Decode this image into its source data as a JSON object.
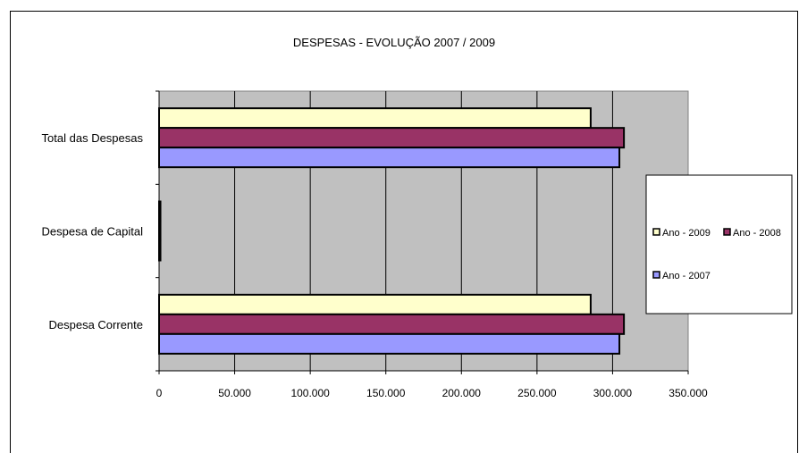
{
  "chart_data": {
    "type": "bar",
    "orientation": "horizontal",
    "title": "DESPESAS - EVOLUÇÃO  2007 / 2009",
    "categories": [
      "Despesa Corrente",
      "Despesa de Capital",
      "Total das Despesas"
    ],
    "series": [
      {
        "name": "Ano - 2007",
        "color": "#9999ff",
        "values": [
          304500,
          900,
          304500
        ]
      },
      {
        "name": "Ano - 2008",
        "color": "#993366",
        "values": [
          307500,
          900,
          307500
        ]
      },
      {
        "name": "Ano - 2009",
        "color": "#ffffcc",
        "values": [
          285500,
          900,
          285500
        ]
      }
    ],
    "xlim": [
      0,
      350000
    ],
    "xticks": [
      0,
      50000,
      100000,
      150000,
      200000,
      250000,
      300000,
      350000
    ],
    "xtick_labels": [
      "0",
      "50.000",
      "100.000",
      "150.000",
      "200.000",
      "250.000",
      "300.000",
      "350.000"
    ],
    "xlabel": "",
    "ylabel": "",
    "grid": "vertical",
    "plot_background": "#c0c0c0",
    "legend_position": "right",
    "legend_order": [
      "Ano - 2009",
      "Ano - 2008",
      "Ano - 2007"
    ]
  }
}
